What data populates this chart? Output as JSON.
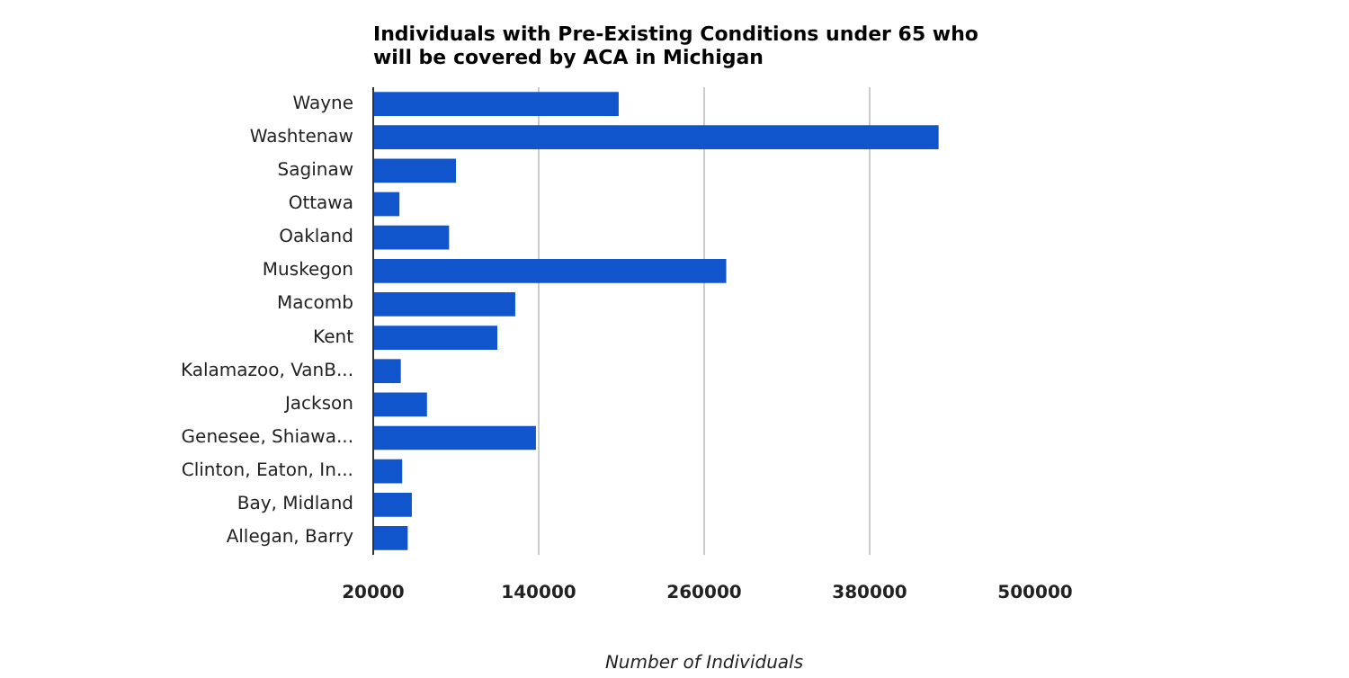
{
  "chart_data": {
    "type": "bar",
    "orientation": "horizontal",
    "title": "Individuals with Pre-Existing Conditions under 65 who\nwill be covered by ACA in Michigan",
    "xlabel": "Number of Individuals",
    "categories": [
      "Wayne",
      "Washtenaw",
      "Saginaw",
      "Ottawa",
      "Oakland",
      "Muskegon",
      "Macomb",
      "Kent",
      "Kalamazoo, VanB...",
      "Jackson",
      "Genesee, Shiawa...",
      "Clinton, Eaton, In...",
      "Bay, Midland",
      "Allegan, Barry"
    ],
    "values": [
      198000,
      430000,
      80000,
      39000,
      75000,
      276000,
      123000,
      110000,
      40000,
      59000,
      138000,
      41000,
      48000,
      45000
    ],
    "color": "#1155cc",
    "xlim": [
      20000,
      500000
    ],
    "xticks": [
      20000,
      140000,
      260000,
      380000,
      500000
    ],
    "grid": "x"
  }
}
